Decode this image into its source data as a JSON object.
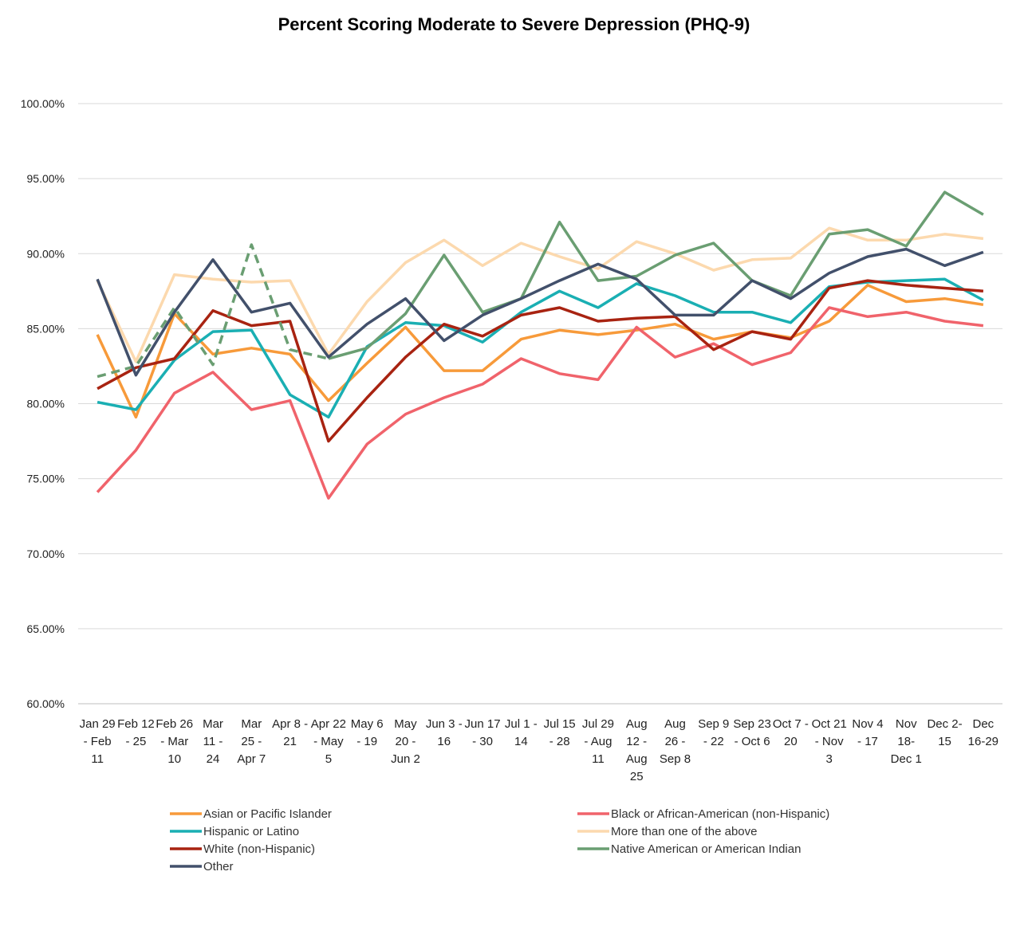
{
  "chart_data": {
    "type": "line",
    "title": "Percent Scoring Moderate to Severe Depression (PHQ-9)",
    "xlabel": "",
    "ylabel": "",
    "ylim": [
      60,
      100
    ],
    "yticks": [
      "60.00%",
      "65.00%",
      "70.00%",
      "75.00%",
      "80.00%",
      "85.00%",
      "90.00%",
      "95.00%",
      "100.00%"
    ],
    "grid": "horizontal",
    "legend_position": "bottom",
    "categories": [
      [
        "Jan 29",
        "- Feb",
        "11"
      ],
      [
        "Feb 12",
        "- 25"
      ],
      [
        "Feb 26",
        "- Mar",
        "10"
      ],
      [
        "Mar",
        "11 -",
        "24"
      ],
      [
        "Mar",
        "25 -",
        "Apr 7"
      ],
      [
        "Apr 8 -",
        "21"
      ],
      [
        "Apr 22",
        "- May",
        "5"
      ],
      [
        "May 6",
        "- 19"
      ],
      [
        "May",
        "20 -",
        "Jun 2"
      ],
      [
        "Jun 3 -",
        "16"
      ],
      [
        "Jun 17",
        "- 30"
      ],
      [
        "Jul 1 -",
        "14"
      ],
      [
        "Jul 15",
        "- 28"
      ],
      [
        "Jul 29",
        "- Aug",
        "11"
      ],
      [
        "Aug",
        "12 -",
        "Aug",
        "25"
      ],
      [
        "Aug",
        "26 -",
        "Sep 8"
      ],
      [
        "Sep 9",
        "- 22"
      ],
      [
        "Sep 23",
        "- Oct 6"
      ],
      [
        "Oct 7 -",
        "20"
      ],
      [
        "Oct 21",
        "- Nov",
        "3"
      ],
      [
        "Nov 4",
        "- 17"
      ],
      [
        "Nov",
        "18-",
        "Dec 1"
      ],
      [
        "Dec 2-",
        "15"
      ],
      [
        "Dec",
        "16-29"
      ]
    ],
    "series": [
      {
        "name": "Asian or Pacific Islander",
        "color": "#F79A3A",
        "dashed_until": -1,
        "values": [
          84.6,
          79.1,
          86.0,
          83.3,
          83.7,
          83.3,
          80.2,
          82.7,
          85.1,
          82.2,
          82.2,
          84.3,
          84.9,
          84.6,
          84.9,
          85.3,
          84.3,
          84.8,
          84.4,
          85.5,
          87.9,
          86.8,
          87.0,
          86.6
        ]
      },
      {
        "name": "Black or African-American (non-Hispanic)",
        "color": "#F0636B",
        "dashed_until": -1,
        "values": [
          74.1,
          76.9,
          80.7,
          82.1,
          79.6,
          80.2,
          73.7,
          77.3,
          79.3,
          80.4,
          81.3,
          83.0,
          82.0,
          81.6,
          85.1,
          83.1,
          84.0,
          82.6,
          83.4,
          86.4,
          85.8,
          86.1,
          85.5,
          85.2
        ]
      },
      {
        "name": "Hispanic or Latino",
        "color": "#1AAFB3",
        "dashed_until": -1,
        "values": [
          80.1,
          79.6,
          82.9,
          84.8,
          84.9,
          80.6,
          79.1,
          83.8,
          85.4,
          85.2,
          84.1,
          86.1,
          87.5,
          86.4,
          88.0,
          87.2,
          86.1,
          86.1,
          85.4,
          87.8,
          88.1,
          88.2,
          88.3,
          86.9
        ]
      },
      {
        "name": "More than one of the above",
        "color": "#FCD9AE",
        "dashed_until": -1,
        "values": [
          88.2,
          82.8,
          88.6,
          88.3,
          88.1,
          88.2,
          83.3,
          86.8,
          89.4,
          90.9,
          89.2,
          90.7,
          89.8,
          89.0,
          90.8,
          90.0,
          88.9,
          89.6,
          89.7,
          91.7,
          90.9,
          90.9,
          91.3,
          91.0
        ]
      },
      {
        "name": "White (non-Hispanic)",
        "color": "#A82311",
        "dashed_until": -1,
        "values": [
          81.0,
          82.4,
          83.0,
          86.2,
          85.2,
          85.5,
          77.5,
          80.4,
          83.1,
          85.3,
          84.5,
          85.9,
          86.4,
          85.5,
          85.7,
          85.8,
          83.6,
          84.8,
          84.3,
          87.7,
          88.2,
          87.9,
          87.7,
          87.5
        ]
      },
      {
        "name": "Native American or American Indian",
        "color": "#6A9E72",
        "dashed_until": 6,
        "values": [
          81.8,
          82.5,
          86.4,
          82.6,
          90.6,
          83.6,
          83.0,
          83.7,
          86.0,
          89.9,
          86.1,
          87.0,
          92.1,
          88.2,
          88.5,
          89.9,
          90.7,
          88.2,
          87.2,
          91.3,
          91.6,
          90.5,
          94.1,
          92.6
        ]
      },
      {
        "name": "Other",
        "color": "#42506B",
        "dashed_until": -1,
        "values": [
          88.3,
          81.9,
          86.1,
          89.6,
          86.1,
          86.7,
          83.1,
          85.3,
          87.0,
          84.2,
          85.9,
          87.0,
          88.2,
          89.3,
          88.3,
          85.9,
          85.9,
          88.2,
          87.0,
          88.7,
          89.8,
          90.3,
          89.2,
          90.1
        ]
      }
    ]
  }
}
